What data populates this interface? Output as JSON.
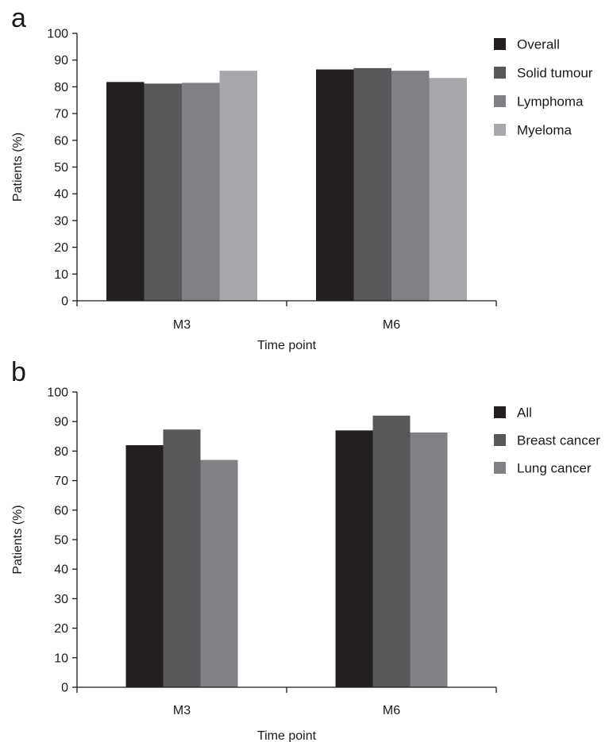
{
  "figure": {
    "panels": [
      "a",
      "b"
    ]
  },
  "chart_data": [
    {
      "panel": "a",
      "type": "bar",
      "xlabel": "Time point",
      "ylabel": "Patients (%)",
      "ylim": [
        0,
        100
      ],
      "yticks": [
        0,
        10,
        20,
        30,
        40,
        50,
        60,
        70,
        80,
        90,
        100
      ],
      "categories": [
        "M3",
        "M6"
      ],
      "grid": false,
      "legend_position": "top-right",
      "series": [
        {
          "name": "Overall",
          "color": "#231f20",
          "values": [
            81.8,
            86.5
          ]
        },
        {
          "name": "Solid tumour",
          "color": "#58585a",
          "values": [
            81.2,
            87.0
          ]
        },
        {
          "name": "Lymphoma",
          "color": "#808184",
          "values": [
            81.5,
            86.0
          ]
        },
        {
          "name": "Myeloma",
          "color": "#a7a8ab",
          "values": [
            86.0,
            83.3
          ]
        }
      ]
    },
    {
      "panel": "b",
      "type": "bar",
      "xlabel": "Time point",
      "ylabel": "Patients (%)",
      "ylim": [
        0,
        100
      ],
      "yticks": [
        0,
        10,
        20,
        30,
        40,
        50,
        60,
        70,
        80,
        90,
        100
      ],
      "categories": [
        "M3",
        "M6"
      ],
      "grid": false,
      "legend_position": "top-right",
      "series": [
        {
          "name": "All",
          "color": "#231f20",
          "values": [
            82.0,
            87.0
          ]
        },
        {
          "name": "Breast cancer",
          "color": "#58585a",
          "values": [
            87.3,
            92.0
          ]
        },
        {
          "name": "Lung cancer",
          "color": "#808184",
          "values": [
            77.0,
            86.3
          ]
        }
      ]
    }
  ]
}
